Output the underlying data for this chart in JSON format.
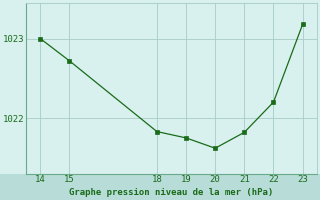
{
  "x": [
    14,
    15,
    18,
    19,
    20,
    21,
    22,
    23
  ],
  "y": [
    1023.0,
    1022.72,
    1021.83,
    1021.75,
    1021.62,
    1021.82,
    1022.2,
    1023.18
  ],
  "line_color": "#1a6b1a",
  "marker_color": "#1a6b1a",
  "bg_color": "#d8f0ee",
  "label_bg_color": "#b8dcd8",
  "grid_color": "#a8ccc8",
  "spine_color": "#6aaa88",
  "xlabel": "Graphe pression niveau de la mer (hPa)",
  "xlabel_color": "#1a6b1a",
  "tick_color": "#1a6b1a",
  "ytick_labels": [
    1022,
    1023
  ],
  "xtick_labels": [
    14,
    15,
    18,
    19,
    20,
    21,
    22,
    23
  ],
  "xlim": [
    13.5,
    23.5
  ],
  "ylim": [
    1021.3,
    1023.45
  ],
  "figsize": [
    3.2,
    2.0
  ],
  "dpi": 100
}
